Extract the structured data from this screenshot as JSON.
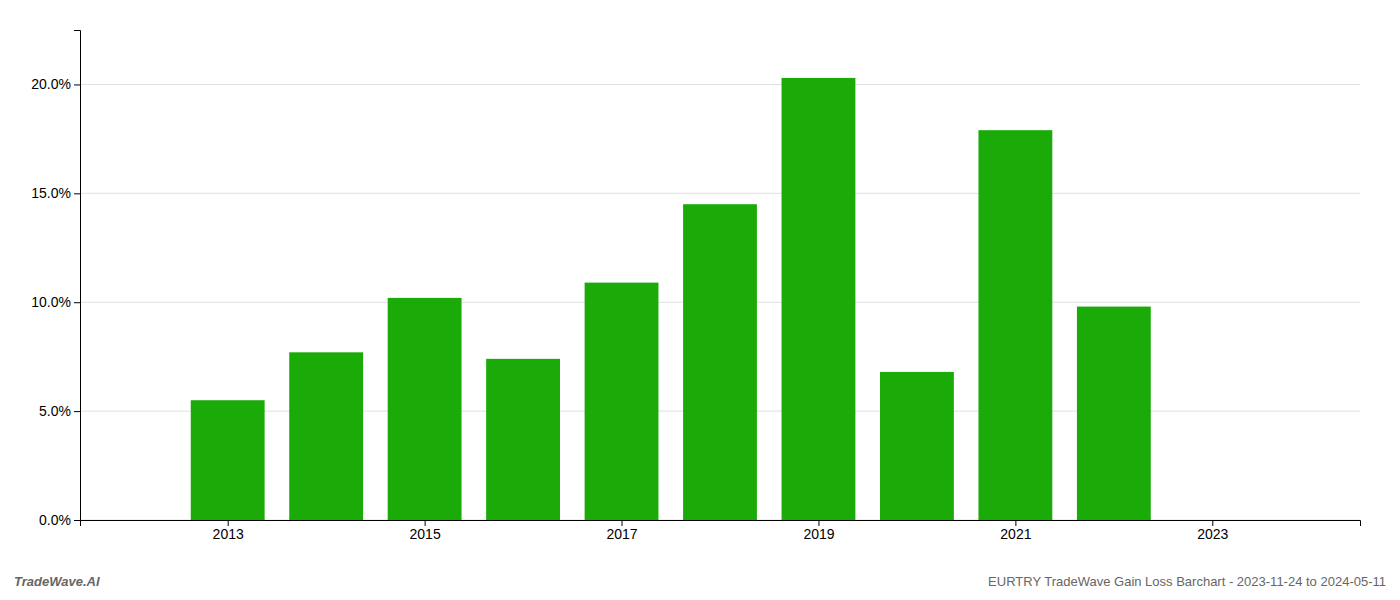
{
  "chart_data": {
    "type": "bar",
    "x": [
      2013,
      2014,
      2015,
      2016,
      2017,
      2018,
      2019,
      2020,
      2021,
      2022
    ],
    "values": [
      0.055,
      0.077,
      0.102,
      0.074,
      0.109,
      0.145,
      0.203,
      0.068,
      0.179,
      0.098
    ],
    "color": "#1aab08",
    "xlim": [
      2011.5,
      2024.5
    ],
    "xticks": [
      2013,
      2015,
      2017,
      2019,
      2021,
      2023
    ],
    "ylim": [
      0.0,
      0.225
    ],
    "yticks": [
      {
        "value": 0.0,
        "label": "0.0%"
      },
      {
        "value": 0.05,
        "label": "5.0%"
      },
      {
        "value": 0.1,
        "label": "10.0%"
      },
      {
        "value": 0.15,
        "label": "15.0%"
      },
      {
        "value": 0.2,
        "label": "20.0%"
      }
    ],
    "grid": true,
    "annotations": [
      "TradeWave.AI",
      "EURTRY TradeWave Gain Loss Barchart - 2023-11-24 to 2024-05-11"
    ]
  }
}
